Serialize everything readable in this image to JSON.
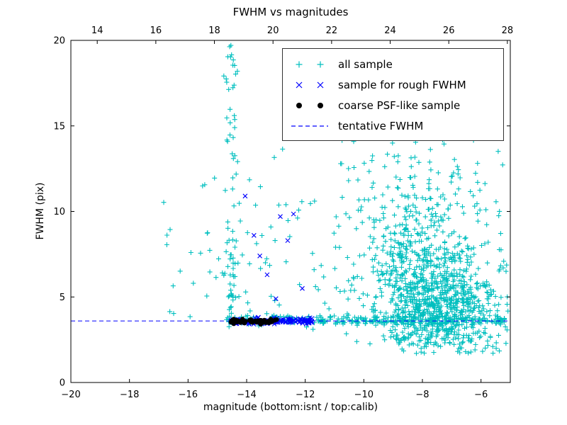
{
  "chart_data": {
    "type": "scatter",
    "title": "FWHM vs magnitudes",
    "xlabel": "magnitude (bottom:isnt / top:calib)",
    "ylabel": "FWHM (pix)",
    "xlim": [
      -20,
      -5
    ],
    "ylim": [
      0,
      20
    ],
    "top_xlim": [
      13.1,
      28.1
    ],
    "x_ticks": [
      -20,
      -18,
      -16,
      -14,
      -12,
      -10,
      -8,
      -6
    ],
    "top_ticks": [
      14,
      16,
      18,
      20,
      22,
      24,
      26,
      28
    ],
    "y_ticks": [
      0,
      5,
      10,
      15,
      20
    ],
    "grid": false,
    "legend_position": "upper right",
    "fwhm_line": {
      "y": 3.6,
      "color": "#0000ff",
      "style": "dashed"
    },
    "legend": [
      {
        "label": "all sample",
        "marker": "plus",
        "color": "#00bfbf"
      },
      {
        "label": "sample for rough FWHM",
        "marker": "x",
        "color": "#0000ff"
      },
      {
        "label": "coarse PSF-like sample",
        "marker": "dot",
        "color": "#000000"
      },
      {
        "label": "tentative FWHM",
        "marker": "dashed-line",
        "color": "#0000ff"
      }
    ],
    "seed": 42,
    "series": [
      {
        "name": "all sample",
        "marker": "plus",
        "color": "#00bfbf",
        "clusters": [
          {
            "n": 40,
            "x": {
              "dist": "gauss",
              "mean": -14.5,
              "sd": 0.1
            },
            "y": {
              "dist": "gauss",
              "mean": 5.5,
              "sd": 1.6
            },
            "yclip": [
              3.2,
              9.5
            ]
          },
          {
            "n": 22,
            "x": {
              "dist": "gauss",
              "mean": -14.5,
              "sd": 0.13
            },
            "y": {
              "dist": "uniform",
              "min": 8,
              "max": 16.5
            }
          },
          {
            "n": 16,
            "x": {
              "dist": "gauss",
              "mean": -14.45,
              "sd": 0.15
            },
            "y": {
              "dist": "gauss",
              "mean": 18.2,
              "sd": 0.9
            },
            "yclip": [
              16.5,
              19.8
            ]
          },
          {
            "n": 55,
            "x": {
              "dist": "uniform",
              "min": -16.2,
              "max": -11.6
            },
            "y": {
              "dist": "gauss",
              "mean": 7.5,
              "sd": 2.6
            },
            "yclip": [
              3.8,
              14.3
            ]
          },
          {
            "n": 8,
            "x": {
              "dist": "uniform",
              "min": -17.2,
              "max": -16.2
            },
            "y": {
              "dist": "uniform",
              "min": 4,
              "max": 13
            }
          },
          {
            "n": 280,
            "x": {
              "dist": "uniform",
              "min": -14.6,
              "max": -5.1
            },
            "y": {
              "dist": "gauss",
              "mean": 3.62,
              "sd": 0.14
            }
          },
          {
            "n": 650,
            "x": {
              "dist": "gauss",
              "mean": -7.4,
              "sd": 1.0
            },
            "xclip": [
              -10.8,
              -5.05
            ],
            "y": {
              "dist": "gauss",
              "mean": 4.6,
              "sd": 1.5
            },
            "yclip": [
              1.6,
              11
            ]
          },
          {
            "n": 420,
            "x": {
              "dist": "gauss",
              "mean": -8.3,
              "sd": 1.2
            },
            "xclip": [
              -10.8,
              -5.05
            ],
            "y": {
              "dist": "gauss",
              "mean": 6.8,
              "sd": 2.4
            },
            "yclip": [
              2,
              14.6
            ]
          },
          {
            "n": 90,
            "x": {
              "dist": "uniform",
              "min": -10.8,
              "max": -5.2
            },
            "y": {
              "dist": "uniform",
              "min": 9.5,
              "max": 14.6
            }
          },
          {
            "n": 50,
            "x": {
              "dist": "uniform",
              "min": -9.0,
              "max": -5.1
            },
            "y": {
              "dist": "uniform",
              "min": 1.7,
              "max": 3.2
            }
          },
          {
            "n": 25,
            "x": {
              "dist": "uniform",
              "min": -11.8,
              "max": -10.3
            },
            "y": {
              "dist": "gauss",
              "mean": 5.5,
              "sd": 2.0
            },
            "yclip": [
              2.5,
              12
            ]
          }
        ],
        "points": []
      },
      {
        "name": "sample for rough FWHM",
        "marker": "x",
        "color": "#0000ff",
        "clusters": [
          {
            "n": 150,
            "x": {
              "dist": "uniform",
              "min": -14.55,
              "max": -11.75
            },
            "y": {
              "dist": "gauss",
              "mean": 3.6,
              "sd": 0.09
            }
          }
        ],
        "points": [
          [
            -14.05,
            10.9
          ],
          [
            -13.75,
            8.6
          ],
          [
            -13.55,
            7.4
          ],
          [
            -13.3,
            6.3
          ],
          [
            -12.85,
            9.7
          ],
          [
            -12.6,
            8.3
          ],
          [
            -12.4,
            9.85
          ],
          [
            -12.1,
            5.5
          ],
          [
            -13.0,
            4.9
          ]
        ]
      },
      {
        "name": "coarse PSF-like sample",
        "marker": "dot",
        "color": "#000000",
        "clusters": [
          {
            "n": 60,
            "x": {
              "dist": "uniform",
              "min": -14.55,
              "max": -12.95
            },
            "y": {
              "dist": "gauss",
              "mean": 3.58,
              "sd": 0.06
            }
          }
        ],
        "points": []
      }
    ]
  }
}
